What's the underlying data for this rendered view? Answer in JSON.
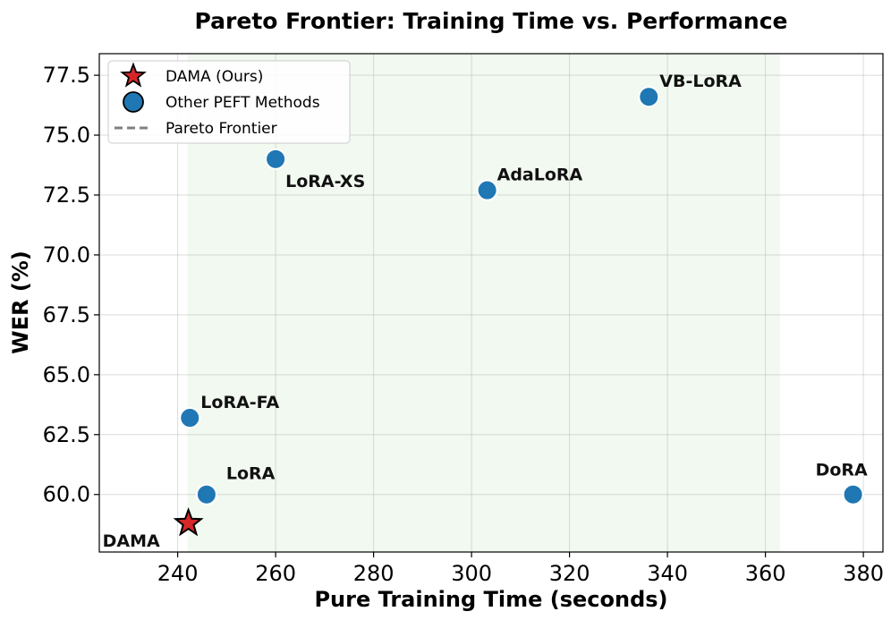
{
  "chart_data": {
    "type": "scatter",
    "title": "Pareto Frontier: Training Time vs. Performance",
    "xlabel": "Pure Training Time (seconds)",
    "ylabel": "WER (%)",
    "xlim": [
      224,
      384
    ],
    "ylim": [
      57.6,
      78.4
    ],
    "xticks": [
      240,
      260,
      280,
      300,
      320,
      340,
      360,
      380
    ],
    "yticks": [
      60.0,
      62.5,
      65.0,
      67.5,
      70.0,
      72.5,
      75.0,
      77.5
    ],
    "xtick_labels": [
      "240",
      "260",
      "280",
      "300",
      "320",
      "340",
      "360",
      "380"
    ],
    "ytick_labels": [
      "60.0",
      "62.5",
      "65.0",
      "67.5",
      "70.0",
      "72.5",
      "75.0",
      "77.5"
    ],
    "grid": true,
    "legend_position": "top-left",
    "shaded_region": {
      "x_start": 242,
      "x_end": 363,
      "color": "#e8f5e6"
    },
    "series": [
      {
        "name": "DAMA (Ours)",
        "marker": "star",
        "color": "#d62728",
        "points": [
          {
            "label": "DAMA",
            "x": 242.2,
            "y": 58.8
          }
        ]
      },
      {
        "name": "Other PEFT Methods",
        "marker": "circle",
        "color": "#1f77b4",
        "points": [
          {
            "label": "LoRA",
            "x": 245.9,
            "y": 60.0
          },
          {
            "label": "LoRA-FA",
            "x": 242.5,
            "y": 63.2
          },
          {
            "label": "LoRA-XS",
            "x": 260.0,
            "y": 74.0
          },
          {
            "label": "AdaLoRA",
            "x": 303.2,
            "y": 72.7
          },
          {
            "label": "VB-LoRA",
            "x": 336.2,
            "y": 76.6
          },
          {
            "label": "DoRA",
            "x": 377.9,
            "y": 60.0
          }
        ]
      },
      {
        "name": "Pareto Frontier",
        "marker": "dashed-line",
        "color": "#808080",
        "points": []
      }
    ]
  }
}
